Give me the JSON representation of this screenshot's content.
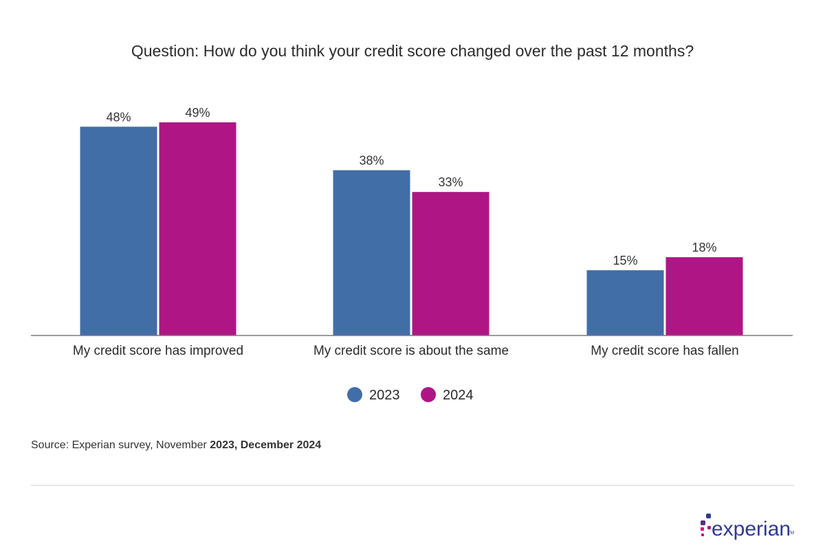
{
  "chart_data": {
    "type": "bar",
    "title": "Question: How do you think your credit score changed over the past 12 months?",
    "categories": [
      "My credit score has improved",
      "My credit score is about the same",
      "My credit score has fallen"
    ],
    "series": [
      {
        "name": "2023",
        "values": [
          48,
          38,
          15
        ],
        "color": "#426ea8"
      },
      {
        "name": "2024",
        "values": [
          49,
          33,
          18
        ],
        "color": "#ae1685"
      }
    ],
    "value_suffix": "%",
    "ylim": [
      0,
      55
    ],
    "grid": false,
    "legend": "bottom-center"
  },
  "source": {
    "prefix": "Source: Experian survey, November ",
    "emph1": "2023, December 2024"
  },
  "logo": {
    "text": "experian",
    "tm": "TM",
    "dot_colors": [
      "#2f3a8f",
      "#ae1685",
      "#e4007c",
      "#5a2d82"
    ]
  }
}
